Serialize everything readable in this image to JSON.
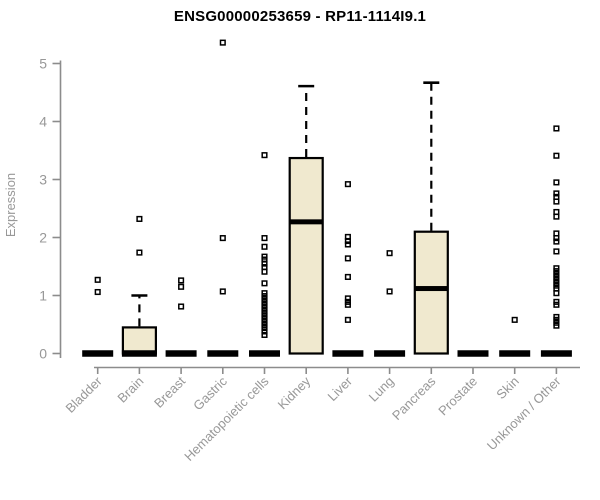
{
  "chart_data": {
    "type": "boxplot",
    "title": "ENSG00000253659 - RP11-1114I9.1",
    "ylabel": "Expression",
    "xlabel": "",
    "ylim": [
      0,
      5.4
    ],
    "yticks": [
      0,
      1,
      2,
      3,
      4,
      5
    ],
    "grid": false,
    "categories": [
      "Bladder",
      "Brain",
      "Breast",
      "Gastric",
      "Hematopoietic cells",
      "Kidney",
      "Liver",
      "Lung",
      "Pancreas",
      "Prostate",
      "Skin",
      "Unknown / Other"
    ],
    "series": [
      {
        "category": "Bladder",
        "q1": 0,
        "median": 0,
        "q3": 0,
        "whisker_low": 0,
        "whisker_high": 0,
        "outliers": [
          1.27,
          1.06
        ]
      },
      {
        "category": "Brain",
        "q1": 0,
        "median": 0,
        "q3": 0.45,
        "whisker_low": 0,
        "whisker_high": 1.0,
        "outliers": [
          2.32,
          1.74
        ]
      },
      {
        "category": "Breast",
        "q1": 0,
        "median": 0,
        "q3": 0,
        "whisker_low": 0,
        "whisker_high": 0,
        "outliers": [
          1.26,
          1.15,
          0.81
        ]
      },
      {
        "category": "Gastric",
        "q1": 0,
        "median": 0,
        "q3": 0,
        "whisker_low": 0,
        "whisker_high": 0,
        "outliers": [
          5.36,
          1.99,
          1.07
        ]
      },
      {
        "category": "Hematopoietic cells",
        "q1": 0,
        "median": 0,
        "q3": 0,
        "whisker_low": 0,
        "whisker_high": 0,
        "outliers": [
          3.42,
          1.99,
          1.84,
          1.67,
          1.62,
          1.55,
          1.49,
          1.41,
          1.21,
          1.04,
          0.99,
          0.94,
          0.89,
          0.84,
          0.79,
          0.74,
          0.69,
          0.64,
          0.59,
          0.54,
          0.49,
          0.44,
          0.38,
          0.32
        ]
      },
      {
        "category": "Kidney",
        "q1": 0,
        "median": 2.27,
        "q3": 3.37,
        "whisker_low": 0,
        "whisker_high": 4.61,
        "outliers": []
      },
      {
        "category": "Liver",
        "q1": 0,
        "median": 0,
        "q3": 0,
        "whisker_low": 0,
        "whisker_high": 0,
        "outliers": [
          2.92,
          2.01,
          1.94,
          1.88,
          1.64,
          1.32,
          0.95,
          0.89,
          0.84,
          0.58
        ]
      },
      {
        "category": "Lung",
        "q1": 0,
        "median": 0,
        "q3": 0,
        "whisker_low": 0,
        "whisker_high": 0,
        "outliers": [
          1.73,
          1.07
        ]
      },
      {
        "category": "Pancreas",
        "q1": 0,
        "median": 1.12,
        "q3": 2.1,
        "whisker_low": 0,
        "whisker_high": 4.67,
        "outliers": []
      },
      {
        "category": "Prostate",
        "q1": 0,
        "median": 0,
        "q3": 0,
        "whisker_low": 0,
        "whisker_high": 0,
        "outliers": []
      },
      {
        "category": "Skin",
        "q1": 0,
        "median": 0,
        "q3": 0,
        "whisker_low": 0,
        "whisker_high": 0,
        "outliers": [
          0.58
        ]
      },
      {
        "category": "Unknown / Other",
        "q1": 0,
        "median": 0,
        "q3": 0,
        "whisker_low": 0,
        "whisker_high": 0,
        "outliers": [
          3.88,
          3.41,
          2.95,
          2.76,
          2.7,
          2.62,
          2.44,
          2.36,
          2.07,
          1.99,
          1.93,
          1.76,
          1.47,
          1.42,
          1.37,
          1.32,
          1.27,
          1.22,
          1.17,
          1.12,
          1.04,
          0.89,
          0.84,
          0.63,
          0.58,
          0.53,
          0.48
        ]
      }
    ],
    "colors": {
      "box_fill": "#f0e9cf",
      "box_border": "#000000",
      "median": "#000000",
      "outlier": "#000000",
      "axis": "#8c8c8c",
      "tick_text": "#989898",
      "title": "#000000",
      "background": "#ffffff"
    },
    "legend_position": "none"
  }
}
